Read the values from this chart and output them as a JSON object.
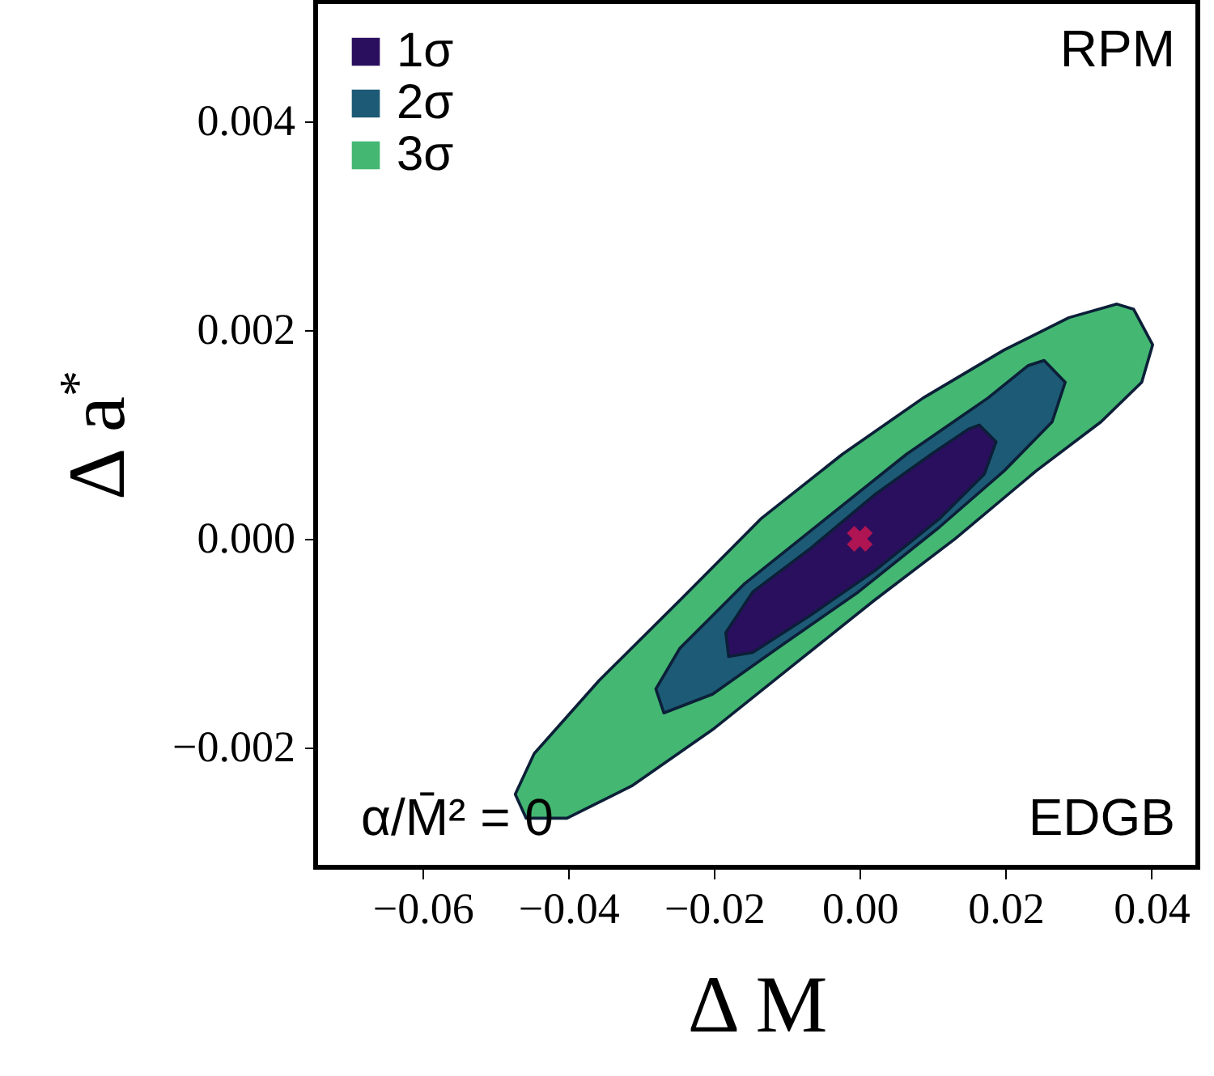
{
  "chart_data": {
    "type": "area",
    "xlabel": "Δ M",
    "ylabel": "Δ a$^{*}$",
    "xlim": [
      -0.0747,
      0.0464
    ],
    "ylim": [
      -0.00315,
      0.00515
    ],
    "xticks": [
      {
        "value": -0.06,
        "label": "−0.06"
      },
      {
        "value": -0.04,
        "label": "−0.04"
      },
      {
        "value": -0.02,
        "label": "−0.02"
      },
      {
        "value": 0,
        "label": "0.00"
      },
      {
        "value": 0.02,
        "label": "0.02"
      },
      {
        "value": 0.04,
        "label": "0.04"
      }
    ],
    "yticks": [
      {
        "value": -0.002,
        "label": "−0.002"
      },
      {
        "value": 0,
        "label": "0.000"
      },
      {
        "value": 0.002,
        "label": "0.002"
      },
      {
        "value": 0.004,
        "label": "0.004"
      }
    ],
    "grid": false,
    "legend": "top left",
    "marker": "none",
    "annotations": [
      "RPM",
      "EDGB",
      "α/M̄² = 0"
    ],
    "series": [
      {
        "name": "1σ",
        "color": "#2a0f5e",
        "x": [
          0.0164,
          0.0187,
          0.0171,
          0.0109,
          0.002,
          -0.0069,
          -0.0147,
          -0.018,
          -0.0184,
          -0.0147,
          -0.0069,
          0.002,
          0.0098,
          0.0149
        ],
        "values": [
          0.00109,
          0.00093,
          0.00062,
          0.00019,
          -0.00031,
          -0.00074,
          -0.00109,
          -0.00113,
          -0.0009,
          -0.00051,
          -0.0001,
          0.00042,
          0.00081,
          0.00105
        ]
      },
      {
        "name": "2σ",
        "color": "#1d5a75",
        "x": [
          0.0253,
          0.0282,
          0.0264,
          0.0198,
          0.0109,
          -0.0002,
          -0.0113,
          -0.0202,
          -0.0269,
          -0.028,
          -0.0247,
          -0.0158,
          -0.0047,
          0.0064,
          0.0176,
          0.0231
        ],
        "values": [
          0.00171,
          0.0015,
          0.00112,
          0.00065,
          0.00011,
          -0.00051,
          -0.00105,
          -0.00149,
          -0.00167,
          -0.00144,
          -0.00105,
          -0.00043,
          0.00019,
          0.00081,
          0.00135,
          0.00166
        ]
      },
      {
        "name": "3σ",
        "color": "#44b772",
        "x": [
          0.0376,
          0.0402,
          0.0387,
          0.0331,
          0.0242,
          0.0131,
          0.002,
          -0.0091,
          -0.0202,
          -0.0313,
          -0.0402,
          -0.0458,
          -0.0473,
          -0.0447,
          -0.0358,
          -0.0247,
          -0.0136,
          -0.0024,
          0.0087,
          0.0198,
          0.0287,
          0.0353
        ],
        "values": [
          0.0022,
          0.00186,
          0.0015,
          0.00112,
          0.00065,
          0,
          -0.00059,
          -0.00121,
          -0.00183,
          -0.00237,
          -0.00268,
          -0.00268,
          -0.00245,
          -0.00206,
          -0.00136,
          -0.00059,
          0.00019,
          0.00081,
          0.00135,
          0.00181,
          0.00212,
          0.00225
        ]
      },
      {
        "type": "scatter",
        "marker": "cross",
        "color": "#e8174f",
        "x": [
          0
        ],
        "values": [
          0
        ]
      }
    ]
  }
}
